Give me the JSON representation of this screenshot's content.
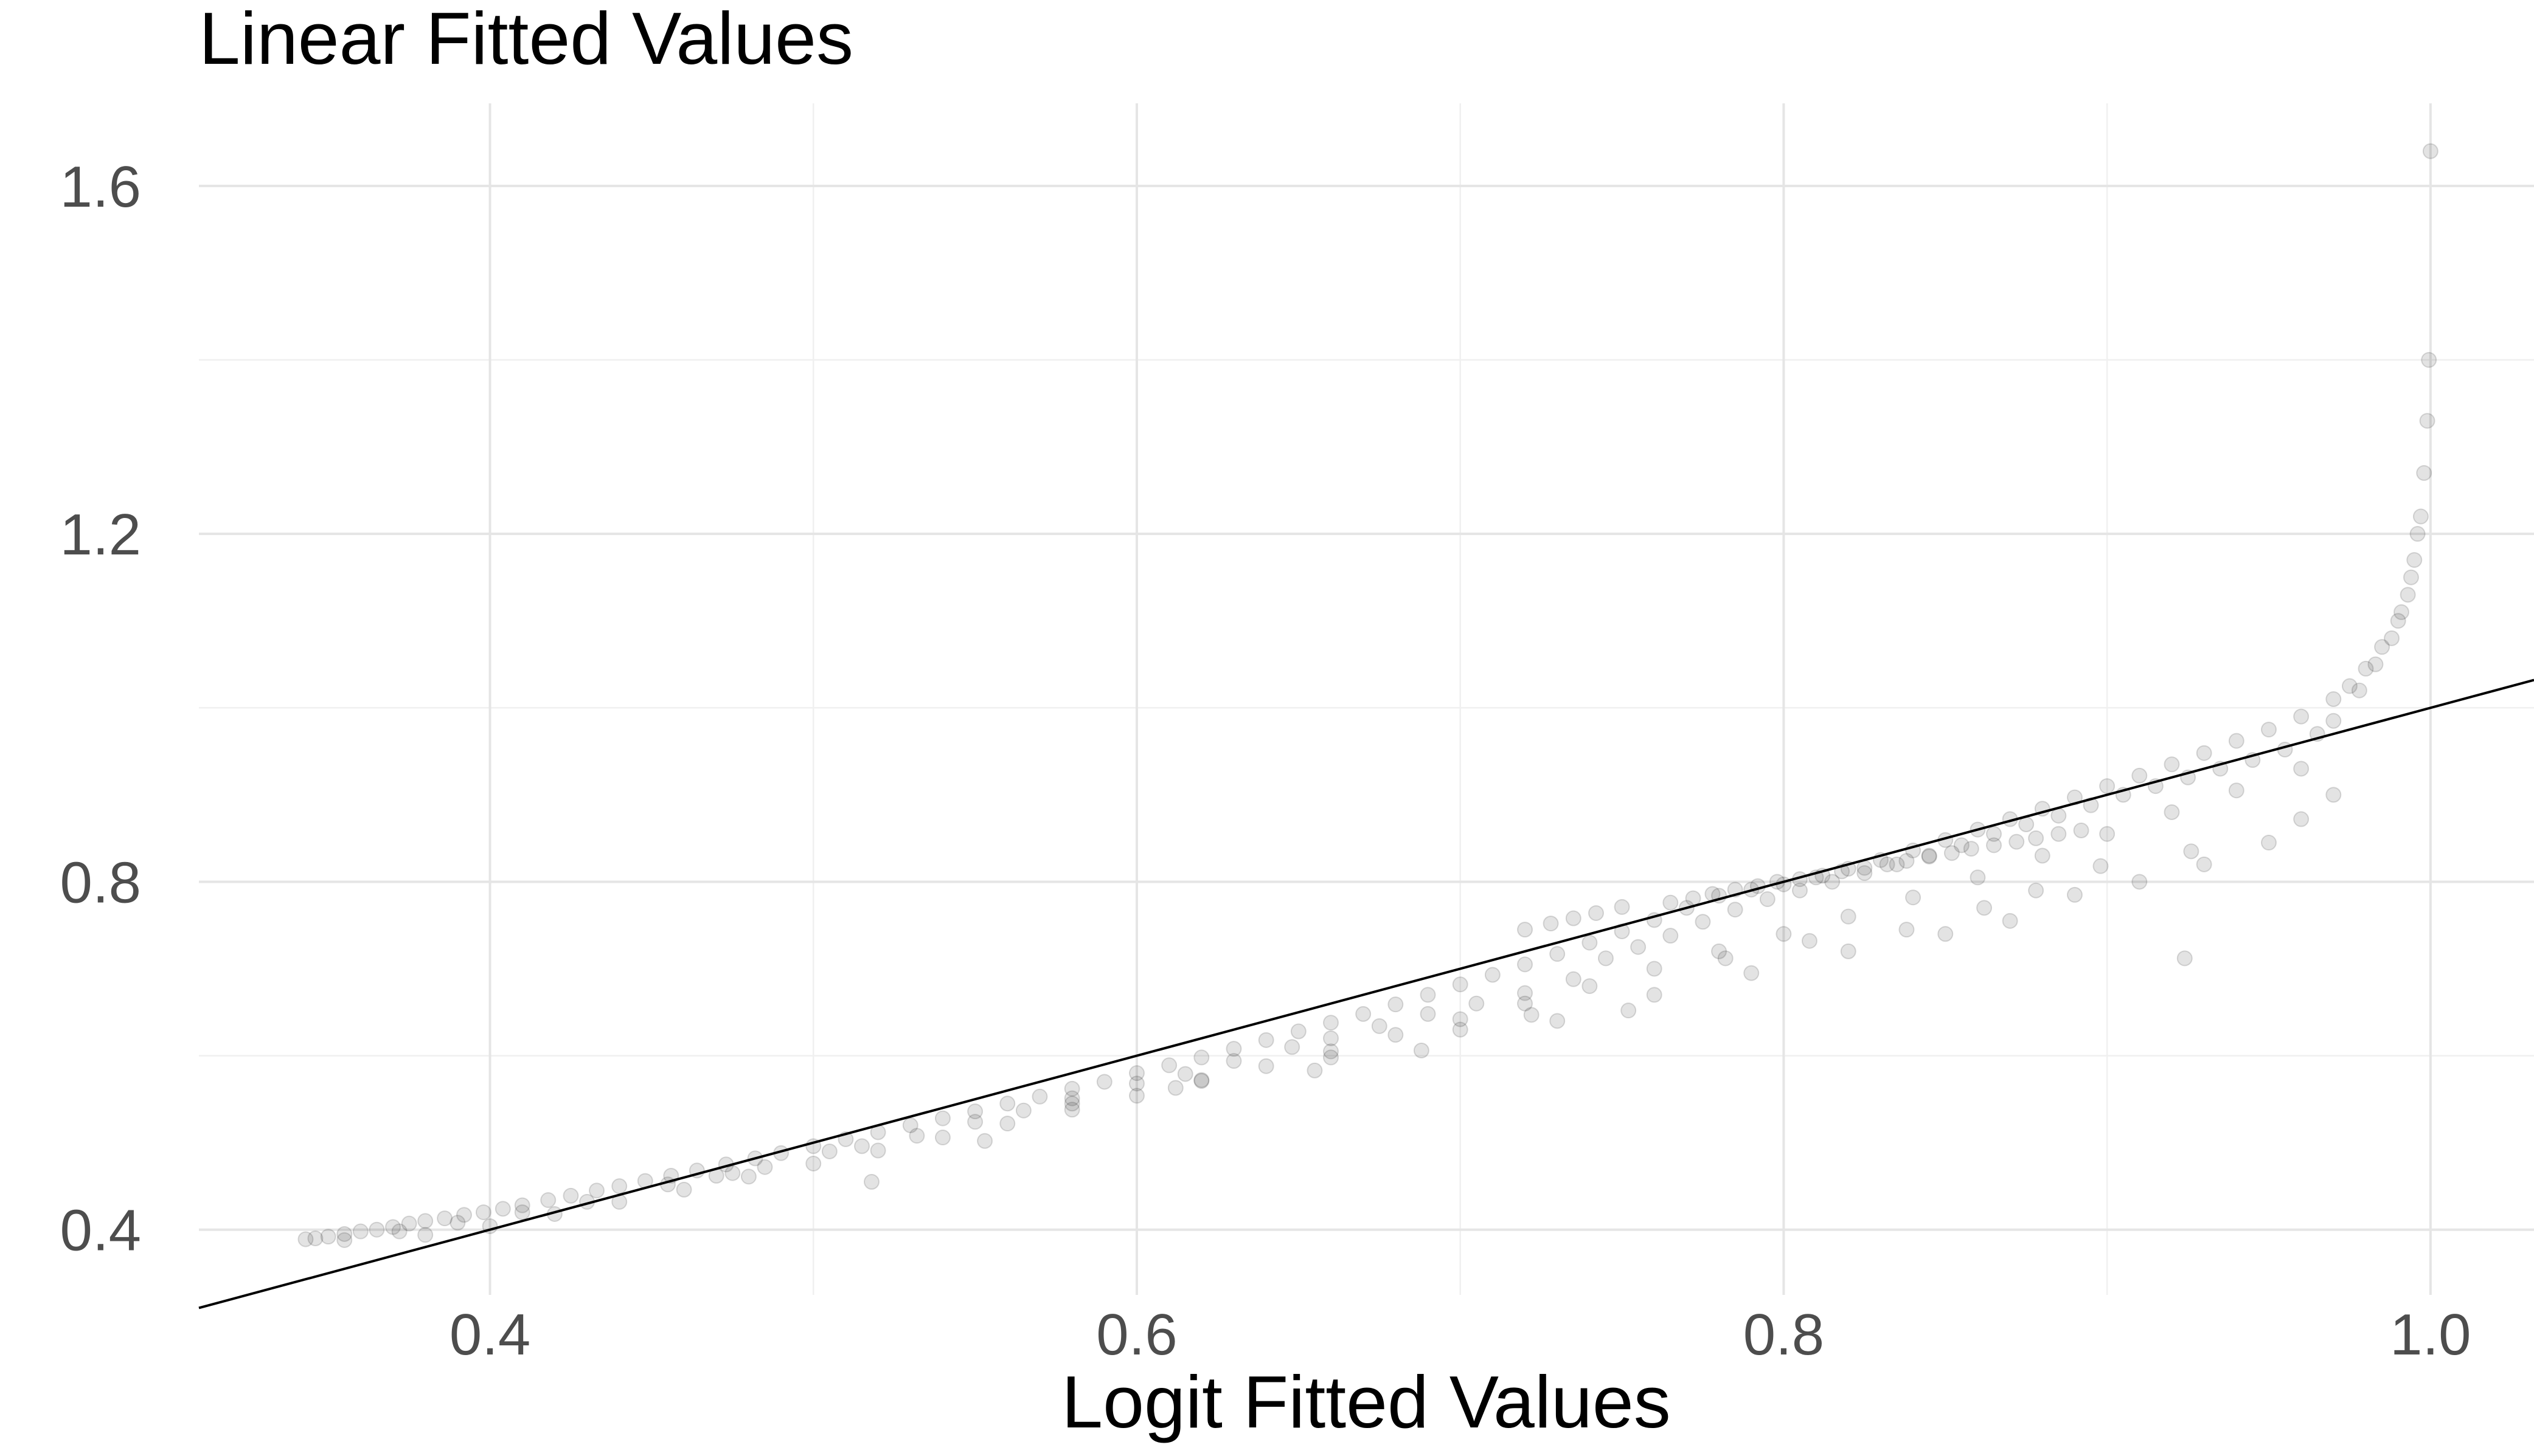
{
  "chart_data": {
    "type": "scatter",
    "title": "Linear Fitted Values",
    "xlabel": "Logit Fitted Values",
    "ylabel": "",
    "xlim": [
      0.31,
      1.032
    ],
    "ylim": [
      0.325,
      1.695
    ],
    "x_ticks": [
      0.4,
      0.6,
      0.8,
      1.0
    ],
    "x_tick_labels": [
      "0.4",
      "0.6",
      "0.8",
      "1.0"
    ],
    "x_minor_ticks": [
      0.5,
      0.7,
      0.9
    ],
    "y_ticks": [
      0.4,
      0.8,
      1.2,
      1.6
    ],
    "y_tick_labels": [
      "0.4",
      "0.8",
      "1.2",
      "1.6"
    ],
    "y_minor_ticks": [
      0.6,
      1.0,
      1.4
    ],
    "grid": true,
    "legend": "none",
    "reference_line": {
      "slope": 1,
      "intercept": 0
    },
    "series": [
      {
        "x": [
          0.343,
          0.346,
          0.35,
          0.355,
          0.36,
          0.365,
          0.37,
          0.375,
          0.38,
          0.386,
          0.392,
          0.398,
          0.404,
          0.41,
          0.418,
          0.425,
          0.433,
          0.44,
          0.448,
          0.456,
          0.464,
          0.473,
          0.482,
          0.49,
          0.5,
          0.51,
          0.52,
          0.53,
          0.54,
          0.55,
          0.56,
          0.57,
          0.58,
          0.59,
          0.6,
          0.61,
          0.62,
          0.63,
          0.64,
          0.65,
          0.66,
          0.67,
          0.68,
          0.69,
          0.7,
          0.71,
          0.72,
          0.73,
          0.74,
          0.75,
          0.76,
          0.77,
          0.78,
          0.79,
          0.8,
          0.81,
          0.82,
          0.83,
          0.84,
          0.85,
          0.86,
          0.87,
          0.88,
          0.89,
          0.9,
          0.91,
          0.92,
          0.93,
          0.94,
          0.95,
          0.96,
          0.97,
          0.975,
          0.98,
          0.985,
          0.99,
          0.993,
          0.995,
          0.997,
          0.998,
          0.999,
          0.9995,
          1.0,
          0.355,
          0.372,
          0.39,
          0.41,
          0.43,
          0.455,
          0.47,
          0.485,
          0.505,
          0.515,
          0.532,
          0.55,
          0.565,
          0.58,
          0.6,
          0.615,
          0.63,
          0.648,
          0.66,
          0.675,
          0.69,
          0.705,
          0.72,
          0.735,
          0.745,
          0.755,
          0.765,
          0.775,
          0.785,
          0.795,
          0.805,
          0.815,
          0.825,
          0.835,
          0.845,
          0.855,
          0.865,
          0.875,
          0.885,
          0.895,
          0.905,
          0.915,
          0.925,
          0.935,
          0.945,
          0.955,
          0.965,
          0.97,
          0.978,
          0.983,
          0.988,
          0.991,
          0.994,
          0.996,
          0.38,
          0.4,
          0.42,
          0.44,
          0.46,
          0.48,
          0.5,
          0.52,
          0.54,
          0.56,
          0.58,
          0.6,
          0.62,
          0.64,
          0.66,
          0.68,
          0.7,
          0.72,
          0.74,
          0.76,
          0.78,
          0.8,
          0.82,
          0.84,
          0.86,
          0.88,
          0.9,
          0.92,
          0.94,
          0.96,
          0.58,
          0.62,
          0.66,
          0.7,
          0.73,
          0.76,
          0.79,
          0.82,
          0.85,
          0.87,
          0.89,
          0.91,
          0.93,
          0.95,
          0.96,
          0.97,
          0.475,
          0.518,
          0.553,
          0.612,
          0.655,
          0.688,
          0.722,
          0.752,
          0.782,
          0.808,
          0.838,
          0.862,
          0.878,
          0.898,
          0.924,
          0.926,
          0.765,
          0.772,
          0.778,
          0.785,
          0.792,
          0.798,
          0.805,
          0.812,
          0.818,
          0.825,
          0.832,
          0.838,
          0.845,
          0.852,
          0.858,
          0.865,
          0.872,
          0.878,
          0.885,
          0.892,
          0.75,
          0.742,
          0.735,
          0.728,
          0.72
        ],
        "y": [
          0.389,
          0.39,
          0.392,
          0.395,
          0.398,
          0.4,
          0.403,
          0.407,
          0.41,
          0.413,
          0.417,
          0.42,
          0.424,
          0.428,
          0.434,
          0.439,
          0.445,
          0.45,
          0.456,
          0.462,
          0.468,
          0.475,
          0.482,
          0.488,
          0.496,
          0.504,
          0.512,
          0.52,
          0.528,
          0.536,
          0.545,
          0.553,
          0.562,
          0.57,
          0.58,
          0.589,
          0.598,
          0.608,
          0.618,
          0.628,
          0.638,
          0.648,
          0.659,
          0.67,
          0.682,
          0.693,
          0.705,
          0.717,
          0.73,
          0.743,
          0.756,
          0.77,
          0.784,
          0.791,
          0.797,
          0.805,
          0.815,
          0.825,
          0.836,
          0.848,
          0.86,
          0.872,
          0.884,
          0.897,
          0.91,
          0.922,
          0.935,
          0.948,
          0.962,
          0.975,
          0.99,
          1.01,
          1.025,
          1.045,
          1.07,
          1.1,
          1.13,
          1.17,
          1.22,
          1.27,
          1.33,
          1.4,
          1.64,
          0.388,
          0.398,
          0.408,
          0.42,
          0.432,
          0.452,
          0.462,
          0.472,
          0.49,
          0.496,
          0.508,
          0.524,
          0.537,
          0.551,
          0.568,
          0.579,
          0.594,
          0.61,
          0.62,
          0.634,
          0.648,
          0.66,
          0.672,
          0.688,
          0.712,
          0.725,
          0.738,
          0.754,
          0.768,
          0.78,
          0.79,
          0.8,
          0.81,
          0.82,
          0.83,
          0.842,
          0.855,
          0.866,
          0.876,
          0.888,
          0.9,
          0.91,
          0.92,
          0.93,
          0.94,
          0.952,
          0.97,
          0.985,
          1.02,
          1.05,
          1.08,
          1.11,
          1.15,
          1.2,
          0.394,
          0.404,
          0.418,
          0.432,
          0.446,
          0.461,
          0.476,
          0.491,
          0.506,
          0.522,
          0.538,
          0.554,
          0.571,
          0.588,
          0.605,
          0.624,
          0.642,
          0.66,
          0.68,
          0.7,
          0.72,
          0.74,
          0.76,
          0.782,
          0.805,
          0.83,
          0.855,
          0.88,
          0.905,
          0.93,
          0.545,
          0.572,
          0.598,
          0.63,
          0.64,
          0.67,
          0.695,
          0.72,
          0.74,
          0.755,
          0.785,
          0.8,
          0.82,
          0.845,
          0.872,
          0.9,
          0.465,
          0.455,
          0.502,
          0.563,
          0.583,
          0.606,
          0.647,
          0.652,
          0.712,
          0.732,
          0.745,
          0.77,
          0.79,
          0.818,
          0.712,
          0.835,
          0.776,
          0.781,
          0.786,
          0.791,
          0.795,
          0.8,
          0.803,
          0.807,
          0.812,
          0.816,
          0.82,
          0.824,
          0.829,
          0.833,
          0.838,
          0.842,
          0.846,
          0.85,
          0.855,
          0.859,
          0.771,
          0.764,
          0.758,
          0.752,
          0.745
        ]
      }
    ]
  }
}
